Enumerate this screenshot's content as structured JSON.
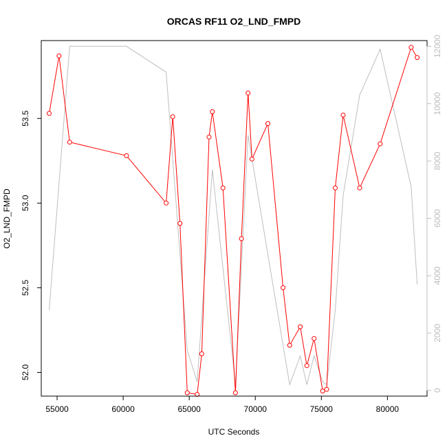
{
  "chart_data": {
    "type": "line",
    "title": "ORCAS RF11 O2_LND_FMPD",
    "xlabel": "UTC Seconds",
    "ylabel": "O2_LND_FMPD",
    "xlim": [
      53800,
      83000
    ],
    "ylim": [
      51.86,
      53.96
    ],
    "y2lim": [
      -200,
      12200
    ],
    "x_ticks": [
      55000,
      60000,
      65000,
      70000,
      75000,
      80000
    ],
    "x_tick_labels": [
      "55000",
      "60000",
      "65000",
      "70000",
      "75000",
      "80000"
    ],
    "y_ticks": [
      52.0,
      52.5,
      53.0,
      53.5
    ],
    "y_tick_labels": [
      "52.0",
      "52.5",
      "53.0",
      "53.5"
    ],
    "y2_ticks": [
      0,
      2000,
      4000,
      6000,
      8000,
      10000,
      12000
    ],
    "y2_tick_labels": [
      "0",
      "2000",
      "4000",
      "6000",
      "8000",
      "10000",
      "12000"
    ],
    "grid": false,
    "series": [
      {
        "axis": "left",
        "color": "#ff0000",
        "marker": "open-circle",
        "x": [
          54400,
          55150,
          55950,
          60250,
          63250,
          63750,
          64300,
          64850,
          65600,
          65950,
          66500,
          66750,
          67550,
          68500,
          68950,
          69450,
          69750,
          70950,
          72100,
          72600,
          73400,
          73900,
          74450,
          75100,
          75400,
          76050,
          76650,
          77900,
          79450,
          81800,
          82250
        ],
        "values": [
          53.53,
          53.87,
          53.36,
          53.28,
          53.0,
          53.51,
          52.88,
          51.88,
          51.87,
          52.11,
          53.39,
          53.54,
          53.09,
          51.88,
          52.79,
          53.65,
          53.26,
          53.47,
          52.5,
          52.16,
          52.27,
          52.04,
          52.2,
          51.89,
          51.9,
          53.09,
          53.52,
          53.09,
          53.35,
          53.92,
          53.86
        ]
      },
      {
        "axis": "right",
        "color": "#bebebe",
        "marker": "none",
        "x": [
          54400,
          55950,
          60250,
          63250,
          64850,
          65600,
          66750,
          68500,
          69450,
          71000,
          72600,
          73400,
          73900,
          74450,
          75100,
          75400,
          76050,
          76650,
          77900,
          79450,
          81800,
          82250
        ],
        "values": [
          2800,
          12000,
          12000,
          11100,
          1400,
          300,
          7700,
          200,
          8900,
          4600,
          200,
          1200,
          200,
          1200,
          300,
          200,
          2800,
          6800,
          10300,
          11900,
          7100,
          3700
        ]
      }
    ]
  }
}
